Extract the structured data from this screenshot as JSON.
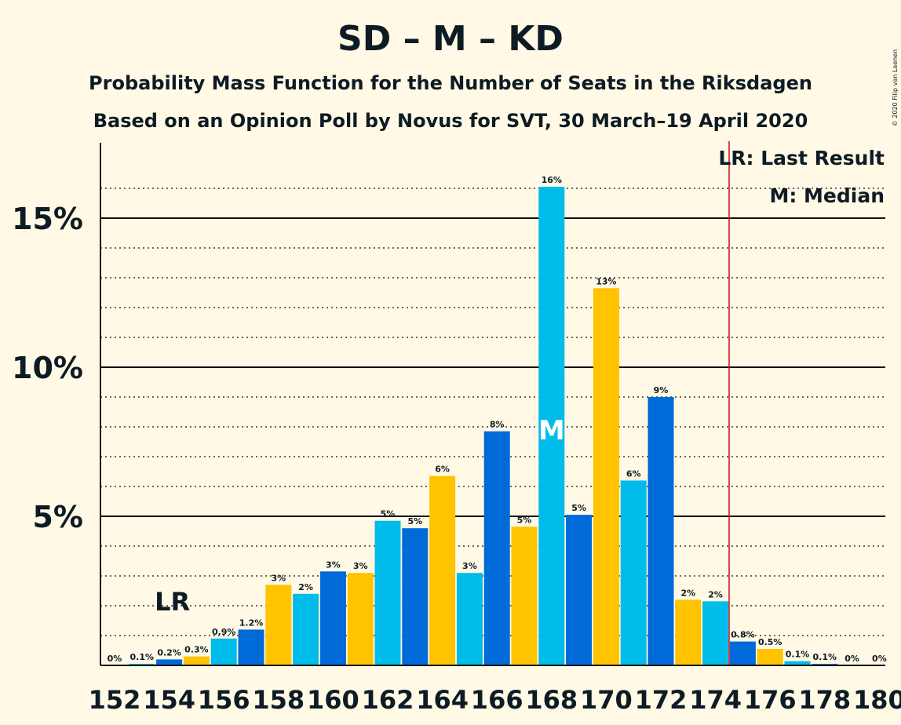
{
  "chart_data": {
    "type": "bar",
    "title": "SD – M – KD",
    "subtitle": "Probability Mass Function for the Number of Seats in the Riksdagen",
    "subtitle2": "Based on an Opinion Poll by Novus for SVT, 30 March–19 April 2020",
    "copyright": "© 2020 Filip van Laenen",
    "legend": {
      "lr": "LR: Last Result",
      "median": "M: Median",
      "placement": "top-right"
    },
    "xlabel": "",
    "ylabel": "",
    "x_tick_labels": [
      "152",
      "154",
      "156",
      "158",
      "160",
      "162",
      "164",
      "166",
      "168",
      "170",
      "172",
      "174",
      "176",
      "178",
      "180"
    ],
    "y_tick_labels": [
      "5%",
      "10%",
      "15%"
    ],
    "y_ticks": [
      5,
      10,
      15
    ],
    "ylim": [
      0,
      17.5
    ],
    "xlim": [
      152,
      180
    ],
    "last_result_seat": 154,
    "last_result_label": "LR",
    "majority_line_seat": 174.5,
    "median_seat": 168,
    "median_label": "M",
    "seats": [
      152,
      153,
      154,
      155,
      156,
      157,
      158,
      159,
      160,
      161,
      162,
      163,
      164,
      165,
      166,
      167,
      168,
      169,
      170,
      171,
      172,
      173,
      174,
      175,
      176,
      177,
      178,
      179,
      180
    ],
    "values": [
      0,
      0.05,
      0.2,
      0.3,
      0.9,
      1.2,
      2.7,
      2.4,
      3.15,
      3.1,
      4.85,
      4.6,
      6.35,
      3.1,
      7.85,
      4.65,
      16.05,
      5.05,
      12.65,
      6.2,
      9.0,
      2.2,
      2.15,
      0.8,
      0.55,
      0.14,
      0.05,
      0,
      0
    ],
    "labels": [
      "0%",
      "0.1%",
      "0.2%",
      "0.3%",
      "0.9%",
      "1.2%",
      "3%",
      "2%",
      "3%",
      "3%",
      "5%",
      "5%",
      "6%",
      "3%",
      "8%",
      "5%",
      "16%",
      "5%",
      "13%",
      "6%",
      "9%",
      "2%",
      "2%",
      "0.8%",
      "0.5%",
      "0.1%",
      "0.1%",
      "0%",
      "0%"
    ],
    "colors": {
      "yellow": "#FFC300",
      "light_blue": "#00BCEB",
      "dark_blue": "#006AD8",
      "majority_line": "#C8101E",
      "background": "#FFF9E5",
      "text": "#0d1b24"
    }
  }
}
